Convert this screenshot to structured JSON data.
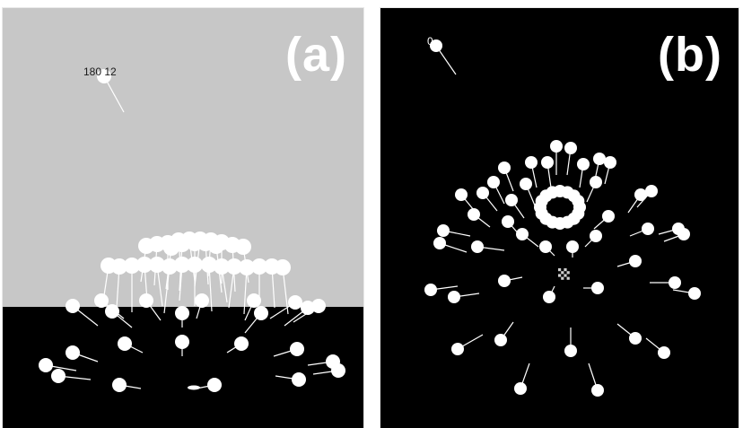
{
  "figure": {
    "panels": [
      {
        "id": "a",
        "label": "(a)",
        "agent_caption": "180 12",
        "background": "#c7c7c7",
        "floor": "#000000"
      },
      {
        "id": "b",
        "label": "(b)",
        "agent_caption": "0",
        "background": "#000000"
      }
    ],
    "colors": {
      "agent": "#ffffff",
      "heading_line": "#ffffff",
      "target": "#cfcfcf"
    }
  }
}
